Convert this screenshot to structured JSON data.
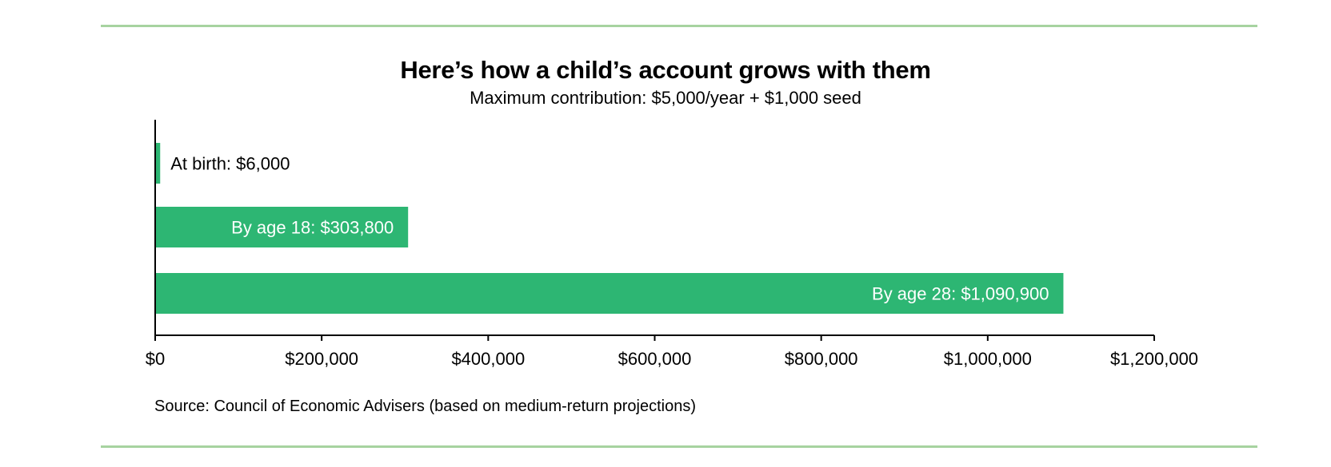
{
  "header": {
    "title": "Here’s how a child’s account grows with them",
    "subtitle": "Maximum contribution: $5,000/year + $1,000 seed"
  },
  "footer": {
    "source": "Source: Council of Economic Advisers (based on medium-return projections)"
  },
  "colors": {
    "bar": "#2db673",
    "rule": "#a7d3a0",
    "axis": "#000000",
    "label_inside": "#ffffff",
    "label_outside": "#000000"
  },
  "chart_data": {
    "type": "bar",
    "orientation": "horizontal",
    "title": "Here’s how a child’s account grows with them",
    "subtitle": "Maximum contribution: $5,000/year + $1,000 seed",
    "categories": [
      "At birth",
      "By age 18",
      "By age 28"
    ],
    "values": [
      6000,
      303800,
      1090900
    ],
    "data_labels": [
      "At birth: $6,000",
      "By age 18: $303,800",
      "By age 28: $1,090,900"
    ],
    "xlim": [
      0,
      1200000
    ],
    "x_ticks": [
      0,
      200000,
      400000,
      600000,
      800000,
      1000000,
      1200000
    ],
    "x_tick_labels": [
      "$0",
      "$200,000",
      "$400,000",
      "$600,000",
      "$800,000",
      "$1,000,000",
      "$1,200,000"
    ],
    "xlabel": "",
    "ylabel": "",
    "grid": false,
    "legend": "none"
  }
}
